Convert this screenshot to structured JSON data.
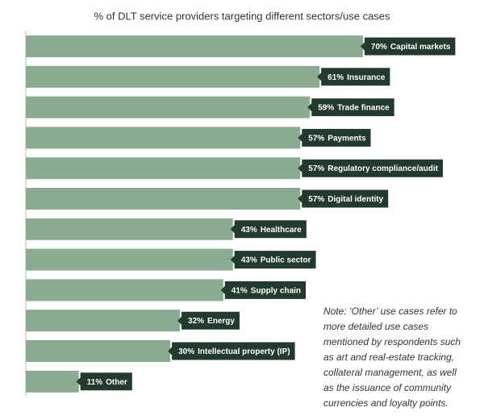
{
  "chart_data": {
    "type": "bar",
    "orientation": "horizontal",
    "title": "% of DLT service providers targeting different sectors/use cases",
    "categories": [
      "Capital markets",
      "Insurance",
      "Trade finance",
      "Payments",
      "Regulatory compliance/audit",
      "Digital identity",
      "Healthcare",
      "Public sector",
      "Supply chain",
      "Energy",
      "Intellectual property (IP)",
      "Other"
    ],
    "values": [
      70,
      61,
      59,
      57,
      57,
      57,
      43,
      43,
      41,
      32,
      30,
      11
    ],
    "value_labels": [
      "70%",
      "61%",
      "59%",
      "57%",
      "57%",
      "57%",
      "43%",
      "43%",
      "41%",
      "32%",
      "30%",
      "11%"
    ],
    "color": "#8aab91",
    "label_color": "#233a2f",
    "note": "Note: ‘Other’ use cases refer to more detailed use cases mentioned by respondents such as art and real-estate tracking, collateral management, as well as the issuance of community currencies and loyalty points."
  }
}
